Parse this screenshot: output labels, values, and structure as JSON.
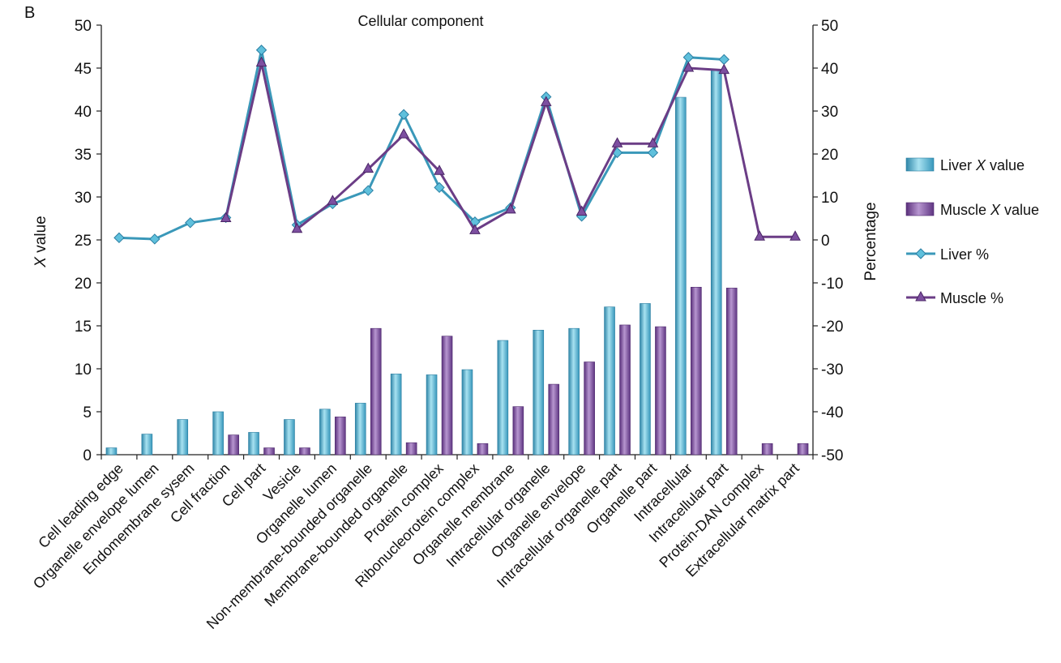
{
  "panel_label": "B",
  "chart_data": {
    "type": "bar",
    "title": "Cellular component",
    "ylabel_left": {
      "italic": "X",
      "rest": " value"
    },
    "ylabel_right": "Percentage",
    "ylim_left": [
      0,
      50
    ],
    "ylim_right": [
      -50,
      50
    ],
    "yticks_left": [
      0,
      5,
      10,
      15,
      20,
      25,
      30,
      35,
      40,
      45,
      50
    ],
    "yticks_right": [
      -50,
      -40,
      -30,
      -20,
      -10,
      0,
      10,
      20,
      30,
      40,
      50
    ],
    "grid": false,
    "legend_position": "right",
    "categories": [
      "Cell leading edge",
      "Organelle envelope lumen",
      "Endomembrane sysem",
      "Cell fraction",
      "Cell part",
      "Vesicle",
      "Organelle lumen",
      "Non-membrane-bounded organelle",
      "Membrane-bounded organelle",
      "Protein complex",
      "Ribonucleorotein complex",
      "Organelle membrane",
      "Intracellular organelle",
      "Organelle envelope",
      "Intracellular organelle part",
      "Organelle part",
      "Intracellular",
      "Intracellular part",
      "Protein-DAN complex",
      "Extracellular matrix part"
    ],
    "series": [
      {
        "name": "Liver X value",
        "legend_parts": [
          "Liver ",
          "X",
          " value"
        ],
        "kind": "bar",
        "axis": "left",
        "color": "#4fb3d1",
        "values": [
          0.8,
          2.4,
          4.1,
          5.0,
          2.6,
          4.1,
          5.3,
          6.0,
          9.4,
          9.3,
          9.9,
          13.3,
          14.5,
          14.7,
          17.2,
          17.6,
          41.6,
          44.8,
          null,
          null
        ]
      },
      {
        "name": "Muscle X value",
        "legend_parts": [
          "Muscle ",
          "X",
          " value"
        ],
        "kind": "bar",
        "axis": "left",
        "color": "#7b4c9b",
        "values": [
          null,
          null,
          null,
          2.3,
          0.8,
          0.8,
          4.4,
          14.7,
          1.4,
          13.8,
          1.3,
          5.6,
          8.2,
          10.8,
          15.1,
          14.9,
          19.5,
          19.4,
          1.3,
          1.3
        ]
      },
      {
        "name": "Liver %",
        "legend_parts": [
          "Liver %"
        ],
        "kind": "line",
        "axis": "right",
        "color": "#3a98b9",
        "marker": "diamond",
        "values": [
          0.5,
          0.2,
          4.0,
          5.2,
          44.2,
          3.5,
          8.4,
          11.5,
          29.2,
          12.2,
          4.2,
          7.5,
          33.3,
          5.5,
          20.3,
          20.3,
          42.5,
          42.0,
          null,
          null
        ]
      },
      {
        "name": "Muscle %",
        "legend_parts": [
          "Muscle %"
        ],
        "kind": "line",
        "axis": "right",
        "color": "#6b3d86",
        "marker": "triangle",
        "values": [
          null,
          null,
          null,
          5.0,
          41.2,
          2.5,
          9.0,
          16.5,
          24.5,
          16.0,
          2.2,
          7.0,
          32.0,
          6.5,
          22.4,
          22.4,
          40.0,
          39.5,
          0.7,
          0.7
        ]
      }
    ]
  }
}
